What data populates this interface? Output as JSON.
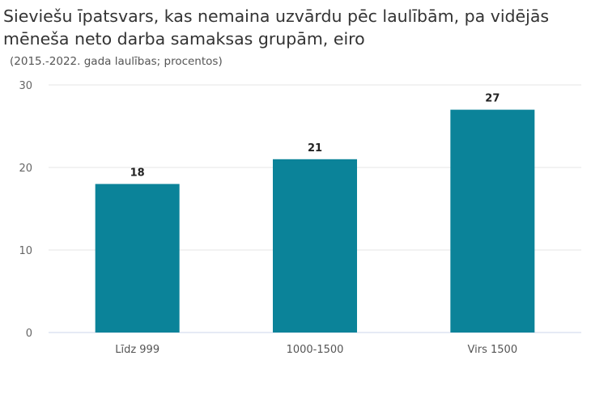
{
  "chart_data": {
    "type": "bar",
    "title": "Sieviešu īpatsvars, kas nemaina uzvārdu pēc laulībām, pa vidējās mēneša neto darba samaksas grupām, eiro",
    "subtitle": "(2015.-2022. gada laulības; procentos)",
    "categories": [
      "Līdz 999",
      "1000-1500",
      "Virs 1500"
    ],
    "values": [
      18,
      21,
      27
    ],
    "xlabel": "",
    "ylabel": "",
    "ylim": [
      0,
      30
    ],
    "yticks": [
      0,
      10,
      20,
      30
    ],
    "grid": true,
    "bar_color": "#0b8399"
  }
}
